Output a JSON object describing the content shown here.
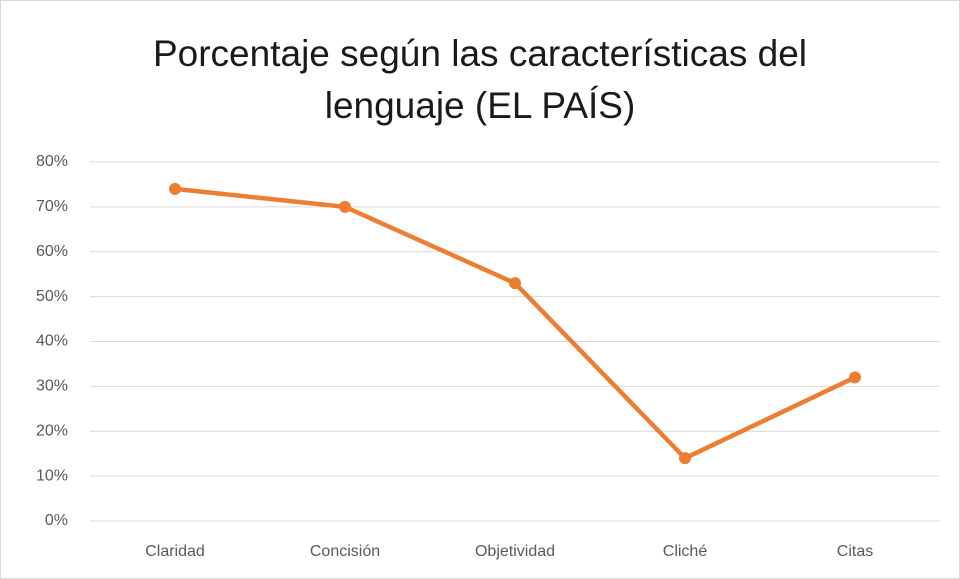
{
  "chart_data": {
    "type": "line",
    "title": "Porcentaje según las características del lenguaje (EL PAÍS)",
    "categories": [
      "Claridad",
      "Concisión",
      "Objetividad",
      "Cliché",
      "Citas"
    ],
    "values": [
      74,
      70,
      53,
      14,
      32
    ],
    "color": "#ed7d31",
    "ylim": [
      0,
      80
    ],
    "yticks": [
      {
        "value": 0,
        "label": "0%"
      },
      {
        "value": 10,
        "label": "10%"
      },
      {
        "value": 20,
        "label": "20%"
      },
      {
        "value": 30,
        "label": "30%"
      },
      {
        "value": 40,
        "label": "40%"
      },
      {
        "value": 50,
        "label": "50%"
      },
      {
        "value": 60,
        "label": "60%"
      },
      {
        "value": 70,
        "label": "70%"
      },
      {
        "value": 80,
        "label": "80%"
      }
    ],
    "grid": true
  }
}
